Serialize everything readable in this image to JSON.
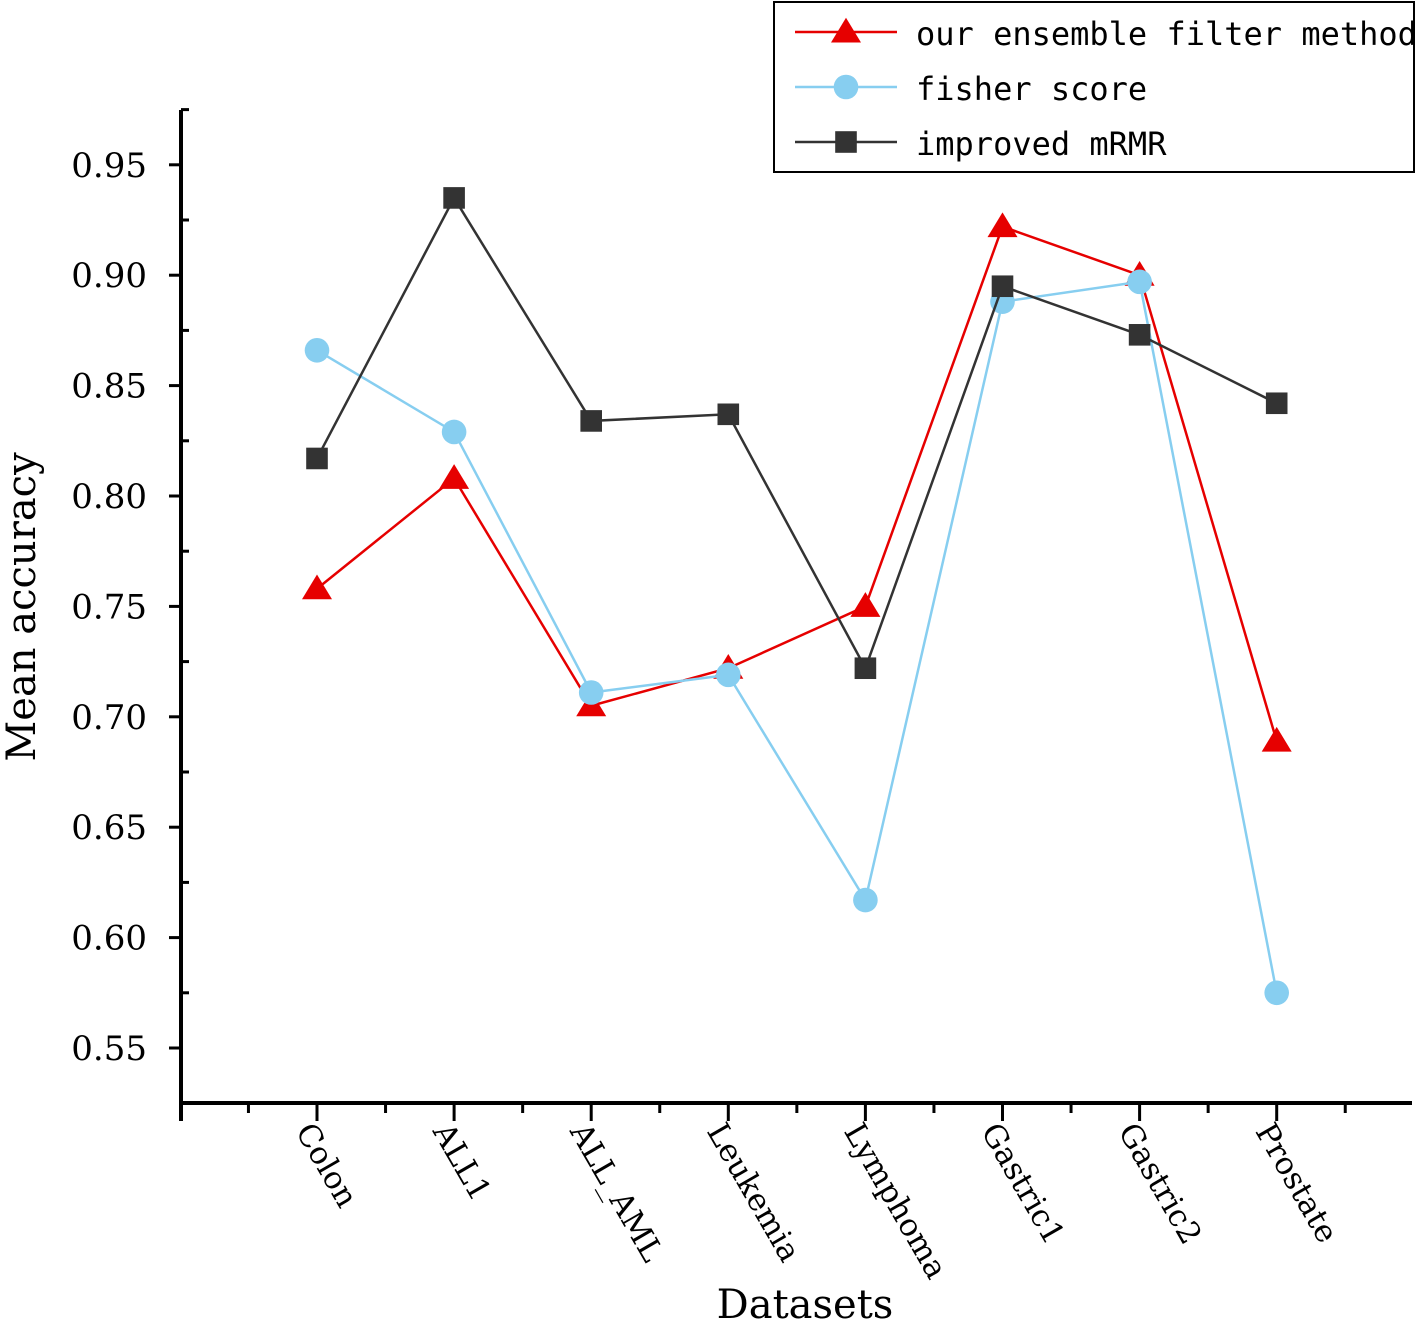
{
  "chart_data": {
    "type": "line",
    "xlabel": "Datasets",
    "ylabel": "Mean accuracy",
    "categories": [
      "Colon",
      "ALL1",
      "ALL_AML",
      "Leukemia",
      "Lymphoma",
      "Gastric1",
      "Gastric2",
      "Prostate"
    ],
    "ylim": [
      0.525,
      0.975
    ],
    "yticks": [
      0.55,
      0.6,
      0.65,
      0.7,
      0.75,
      0.8,
      0.85,
      0.9,
      0.95
    ],
    "ytick_labels": [
      "0.55",
      "0.60",
      "0.65",
      "0.70",
      "0.75",
      "0.80",
      "0.85",
      "0.90",
      "0.95"
    ],
    "legend_position": "top-right",
    "grid": false,
    "series": [
      {
        "name": "our ensemble filter method",
        "color": "#e60000",
        "marker": "triangle",
        "values": [
          0.758,
          0.808,
          0.705,
          0.722,
          0.75,
          0.922,
          0.9,
          0.689
        ]
      },
      {
        "name": "fisher score",
        "color": "#87cef0",
        "marker": "circle",
        "values": [
          0.866,
          0.829,
          0.711,
          0.719,
          0.617,
          0.888,
          0.897,
          0.575
        ]
      },
      {
        "name": "improved mRMR",
        "color": "#333333",
        "marker": "square",
        "values": [
          0.817,
          0.935,
          0.834,
          0.837,
          0.722,
          0.895,
          0.873,
          0.842
        ]
      }
    ]
  }
}
